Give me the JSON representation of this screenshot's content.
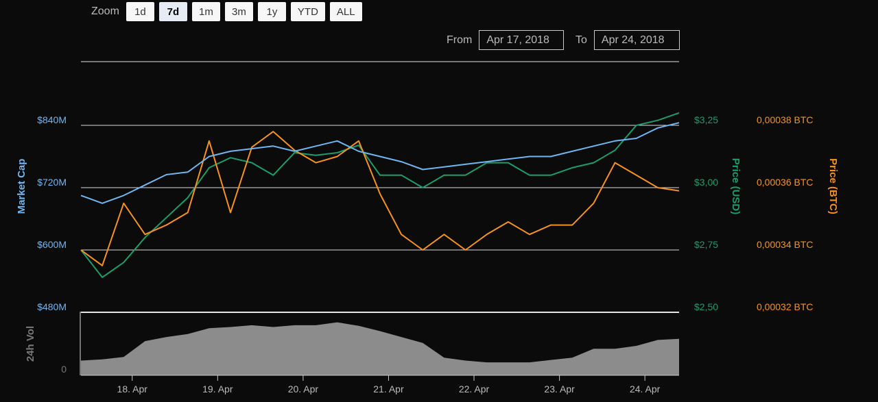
{
  "zoom": {
    "label": "Zoom",
    "buttons": [
      "1d",
      "7d",
      "1m",
      "3m",
      "1y",
      "YTD",
      "ALL"
    ],
    "active": "7d"
  },
  "range": {
    "from_label": "From",
    "from_value": "Apr 17, 2018",
    "to_label": "To",
    "to_value": "Apr 24, 2018"
  },
  "colors": {
    "market_cap": "#6fb6f2",
    "price_usd": "#1a9e6b",
    "price_btc": "#f7931a",
    "volume": "#8c8c8c"
  },
  "chart_data": {
    "type": "line",
    "x_ticks": [
      "18. Apr",
      "19. Apr",
      "20. Apr",
      "21. Apr",
      "22. Apr",
      "23. Apr",
      "24. Apr"
    ],
    "x_range": [
      "Apr 17, 2018",
      "Apr 24, 2018"
    ],
    "axes": {
      "market_cap": {
        "label": "Market Cap",
        "ticks": [
          "$840M",
          "$720M",
          "$600M",
          "$480M"
        ],
        "values": [
          840,
          720,
          600,
          480
        ],
        "unit": "USD millions"
      },
      "price_usd": {
        "label": "Price (USD)",
        "ticks": [
          "$3,25",
          "$3,00",
          "$2,75",
          "$2,50"
        ],
        "values": [
          3.25,
          3.0,
          2.75,
          2.5
        ]
      },
      "price_btc": {
        "label": "Price (BTC)",
        "ticks": [
          "0,00038 BTC",
          "0,00036 BTC",
          "0,00034 BTC",
          "0,00032 BTC"
        ],
        "values": [
          0.00038,
          0.00036,
          0.00034,
          0.00032
        ]
      },
      "volume": {
        "label": "24h Vol",
        "ticks": [
          "0"
        ]
      }
    },
    "x_days": [
      0,
      0.25,
      0.5,
      0.75,
      1.0,
      1.25,
      1.5,
      1.75,
      2.0,
      2.25,
      2.5,
      2.75,
      3.0,
      3.25,
      3.5,
      3.75,
      4.0,
      4.25,
      4.5,
      4.75,
      5.0,
      5.25,
      5.5,
      5.75,
      6.0,
      6.25,
      6.5,
      6.75,
      7.0
    ],
    "series": [
      {
        "name": "Market Cap",
        "axis": "market_cap",
        "values": [
          705,
          690,
          705,
          725,
          745,
          750,
          780,
          790,
          795,
          800,
          790,
          800,
          810,
          790,
          780,
          770,
          755,
          760,
          765,
          770,
          775,
          780,
          780,
          790,
          800,
          810,
          815,
          835,
          845
        ]
      },
      {
        "name": "Price (USD)",
        "axis": "price_usd",
        "values": [
          2.75,
          2.64,
          2.7,
          2.8,
          2.88,
          2.96,
          3.08,
          3.12,
          3.1,
          3.05,
          3.14,
          3.13,
          3.14,
          3.17,
          3.05,
          3.05,
          3.0,
          3.05,
          3.05,
          3.1,
          3.1,
          3.05,
          3.05,
          3.08,
          3.1,
          3.15,
          3.25,
          3.27,
          3.3
        ]
      },
      {
        "name": "Price (BTC)",
        "axis": "price_btc",
        "values": [
          0.00034,
          0.000335,
          0.000355,
          0.000345,
          0.000348,
          0.000352,
          0.000375,
          0.000352,
          0.000373,
          0.000378,
          0.000372,
          0.000368,
          0.00037,
          0.000375,
          0.000358,
          0.000345,
          0.00034,
          0.000345,
          0.00034,
          0.000345,
          0.000349,
          0.000345,
          0.000348,
          0.000348,
          0.000355,
          0.000368,
          0.000364,
          0.00036,
          0.000359
        ]
      },
      {
        "name": "24h Vol",
        "axis": "volume",
        "values": [
          0.25,
          0.27,
          0.31,
          0.58,
          0.65,
          0.7,
          0.8,
          0.82,
          0.85,
          0.82,
          0.85,
          0.85,
          0.9,
          0.84,
          0.75,
          0.65,
          0.55,
          0.3,
          0.25,
          0.22,
          0.22,
          0.22,
          0.26,
          0.3,
          0.45,
          0.45,
          0.5,
          0.6,
          0.62
        ]
      }
    ],
    "grid": true
  }
}
